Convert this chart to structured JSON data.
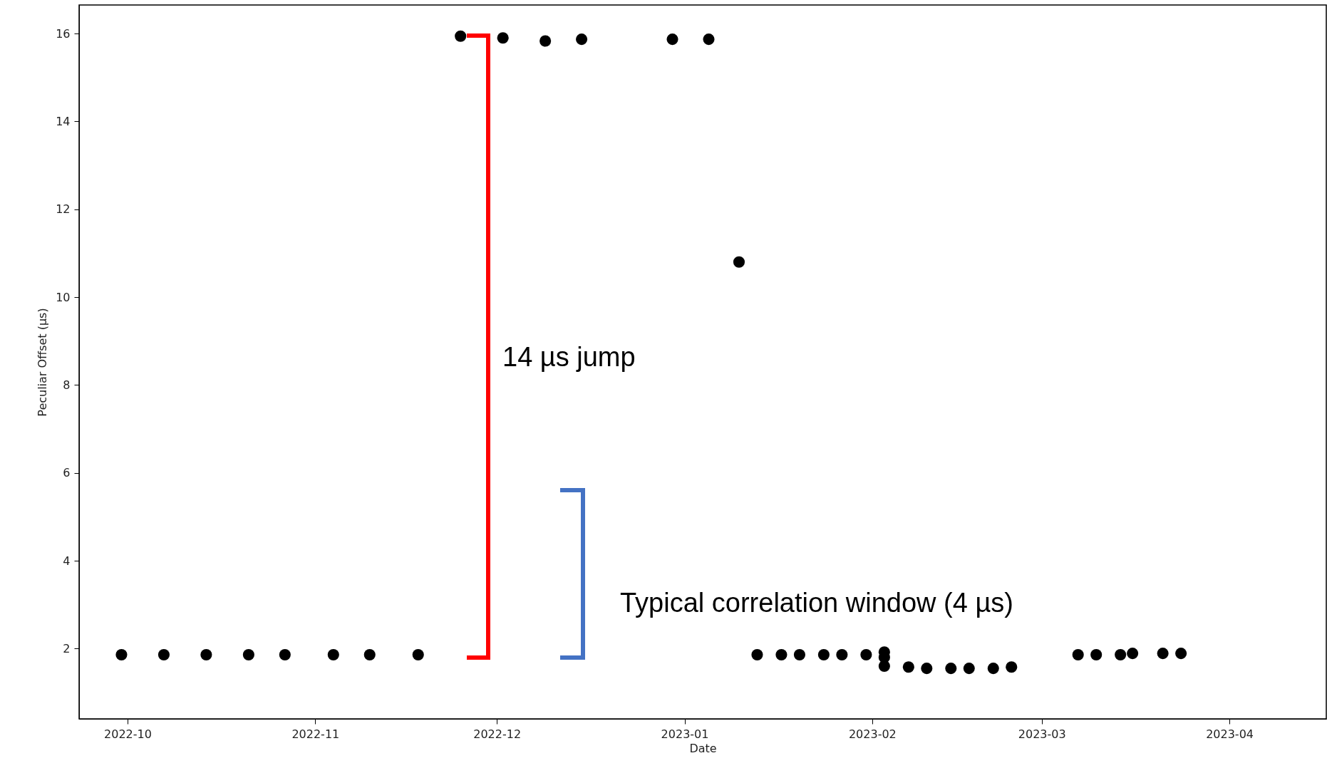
{
  "chart_data": {
    "type": "scatter",
    "xlabel": "Date",
    "ylabel": "Peculiar Offset (μs)",
    "x": [
      "2022-09-30",
      "2022-10-07",
      "2022-10-14",
      "2022-10-21",
      "2022-10-27",
      "2022-11-04",
      "2022-11-10",
      "2022-11-18",
      "2022-11-25",
      "2022-12-02",
      "2022-12-09",
      "2022-12-15",
      "2022-12-30",
      "2023-01-05",
      "2023-01-10",
      "2023-01-13",
      "2023-01-17",
      "2023-01-20",
      "2023-01-24",
      "2023-01-27",
      "2023-01-31",
      "2023-02-03",
      "2023-02-03",
      "2023-02-03",
      "2023-02-07",
      "2023-02-10",
      "2023-02-14",
      "2023-02-17",
      "2023-02-21",
      "2023-02-24",
      "2023-03-07",
      "2023-03-10",
      "2023-03-14",
      "2023-03-16",
      "2023-03-21",
      "2023-03-24"
    ],
    "series": [
      {
        "color": "#000000",
        "values": [
          1.86,
          1.86,
          1.86,
          1.86,
          1.86,
          1.86,
          1.86,
          1.86,
          15.94,
          15.9,
          15.83,
          15.87,
          15.87,
          15.87,
          10.8,
          1.86,
          1.86,
          1.86,
          1.86,
          1.86,
          1.86,
          1.92,
          1.8,
          1.6,
          1.58,
          1.55,
          1.55,
          1.55,
          1.55,
          1.58,
          1.86,
          1.86,
          1.86,
          1.89,
          1.89,
          1.89
        ]
      }
    ],
    "marker": "circle",
    "xlim": [
      "2022-09-23",
      "2023-04-17"
    ],
    "xticks": [
      {
        "value": "2022-10-01",
        "label": "2022-10"
      },
      {
        "value": "2022-11-01",
        "label": "2022-11"
      },
      {
        "value": "2022-12-01",
        "label": "2022-12"
      },
      {
        "value": "2023-01-01",
        "label": "2023-01"
      },
      {
        "value": "2023-02-01",
        "label": "2023-02"
      },
      {
        "value": "2023-03-01",
        "label": "2023-03"
      },
      {
        "value": "2023-04-01",
        "label": "2023-04"
      }
    ],
    "ylim": [
      0.4,
      16.65
    ],
    "yticks": [
      2,
      4,
      6,
      8,
      10,
      12,
      14,
      16
    ],
    "grid": false,
    "annotations": [
      "14 µs jump",
      "Typical correlation window (4 µs)"
    ]
  }
}
